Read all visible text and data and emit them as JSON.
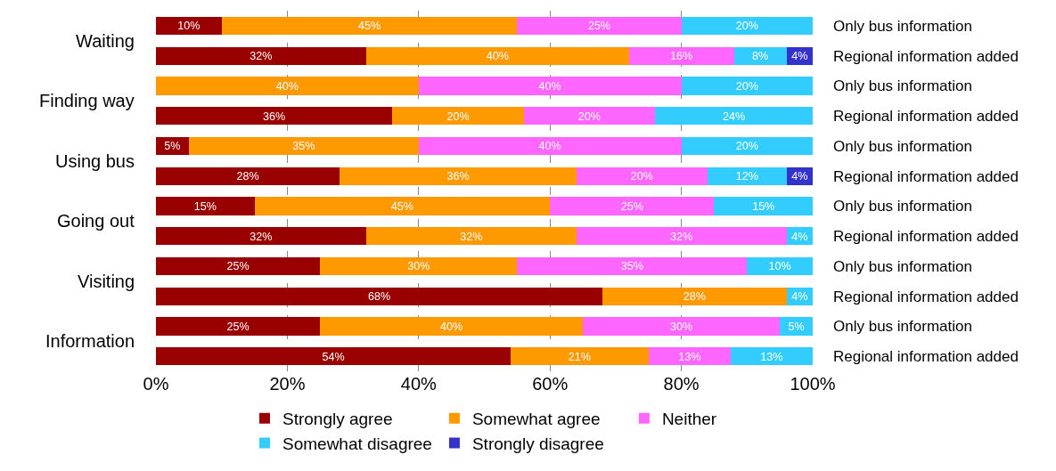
{
  "chart_data": {
    "type": "bar",
    "orientation": "horizontal",
    "stacked": true,
    "categories": [
      "Only bus information",
      "Regional information added",
      "Only bus information",
      "Regional information added",
      "Only bus information",
      "Regional information added",
      "Only bus information",
      "Regional information added",
      "Only bus information",
      "Regional information added",
      "Only bus information",
      "Regional information added"
    ],
    "annotations": [
      "Waiting",
      "Finding way",
      "Using bus",
      "Going out",
      "Visiting",
      "Information"
    ],
    "series": [
      {
        "name": "Strongly agree",
        "color": "#990000",
        "values": [
          10,
          32,
          null,
          36,
          5,
          28,
          15,
          32,
          25,
          68,
          25,
          54
        ],
        "value_labels": [
          "10%",
          "32%",
          null,
          "36%",
          "5%",
          "28%",
          "15%",
          "32%",
          "25%",
          "68%",
          "25%",
          "54%"
        ]
      },
      {
        "name": "Somewhat agree",
        "color": "#ff9900",
        "values": [
          45,
          40,
          40,
          20,
          35,
          36,
          45,
          32,
          30,
          28,
          40,
          21
        ],
        "value_labels": [
          "45%",
          "40%",
          "40%",
          "20%",
          "35%",
          "36%",
          "45%",
          "32%",
          "30%",
          "28%",
          "40%",
          "21%"
        ]
      },
      {
        "name": "Neither",
        "color": "#ff66ff",
        "values": [
          25,
          16,
          40,
          20,
          40,
          20,
          25,
          32,
          35,
          null,
          30,
          12.5
        ],
        "value_labels": [
          "25%",
          "16%",
          "40%",
          "20%",
          "40%",
          "20%",
          "25%",
          "32%",
          "35%",
          null,
          "30%",
          "13%"
        ]
      },
      {
        "name": "Somewhat disagree",
        "color": "#33ccff",
        "values": [
          20,
          8,
          20,
          24,
          20,
          12,
          15,
          4,
          10,
          4,
          5,
          12.5
        ],
        "value_labels": [
          "20%",
          "8%",
          "20%",
          "24%",
          "20%",
          "12%",
          "15%",
          "4%",
          "10%",
          "4%",
          "5%",
          "13%"
        ]
      },
      {
        "name": "Strongly disagree",
        "color": "#3333cc",
        "values": [
          null,
          4,
          null,
          null,
          null,
          4,
          null,
          null,
          null,
          null,
          null,
          null
        ],
        "value_labels": [
          null,
          "4%",
          null,
          null,
          null,
          "4%",
          null,
          null,
          null,
          null,
          null,
          null
        ]
      }
    ],
    "xlim": [
      0,
      100
    ],
    "xticks": [
      {
        "value": 0,
        "label": "0%"
      },
      {
        "value": 20,
        "label": "20%"
      },
      {
        "value": 40,
        "label": "40%"
      },
      {
        "value": 60,
        "label": "60%"
      },
      {
        "value": 80,
        "label": "80%"
      },
      {
        "value": 100,
        "label": "100%"
      }
    ],
    "grid": "x",
    "line_style": "dashed",
    "legend": "bottom"
  }
}
